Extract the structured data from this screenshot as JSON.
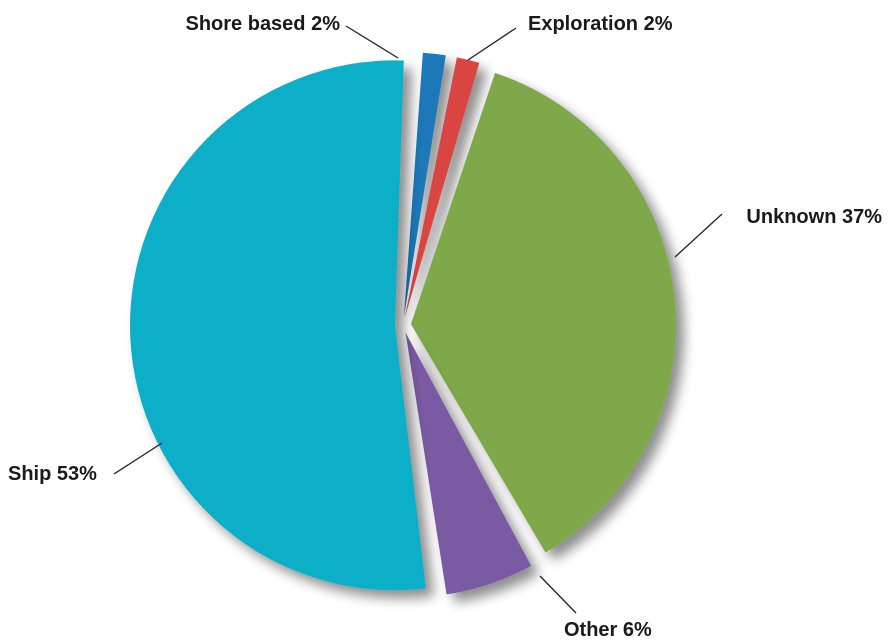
{
  "chart_data": {
    "type": "pie",
    "title": "",
    "slices": [
      {
        "label": "Shore based 2%",
        "value": 2,
        "color": "#1f78b8"
      },
      {
        "label": "Exploration 2%",
        "value": 2,
        "color": "#d94440"
      },
      {
        "label": "Unknown 37%",
        "value": 37,
        "color": "#7ea84a"
      },
      {
        "label": "Other 6%",
        "value": 6,
        "color": "#7a5aa3"
      },
      {
        "label": "Ship 53%",
        "value": 53,
        "color": "#0baec7"
      }
    ],
    "exploded": true,
    "legend": "none",
    "grid": false
  }
}
